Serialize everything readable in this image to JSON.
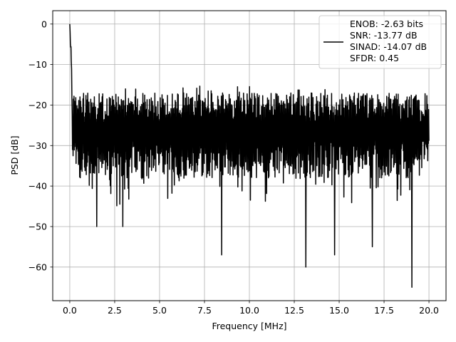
{
  "chart_data": {
    "type": "line",
    "title": "",
    "xlabel": "Frequency [MHz]",
    "ylabel": "PSD [dB]",
    "xlim": [
      -0.95,
      20.95
    ],
    "ylim": [
      -68.3,
      3.3
    ],
    "xticks": [
      0,
      2.5,
      5,
      7.5,
      10,
      12.5,
      15,
      17.5,
      20
    ],
    "xtick_labels": [
      "0.0",
      "2.5",
      "5.0",
      "7.5",
      "10.0",
      "12.5",
      "15.0",
      "17.5",
      "20.0"
    ],
    "yticks": [
      0,
      -10,
      -20,
      -30,
      -40,
      -50,
      -60
    ],
    "ytick_labels": [
      "0",
      "−10",
      "−20",
      "−30",
      "−40",
      "−50",
      "−60"
    ],
    "grid": true,
    "line_color": "#000000",
    "noise_profile": {
      "x_start": 0,
      "x_end": 20,
      "n_points": 1200,
      "peak_at_x": 0,
      "peak_value": 0,
      "initial_decay_to": -15,
      "upper_envelope_db": -17,
      "lower_envelope_db": -38,
      "median_db": -27
    },
    "notable_dips": [
      {
        "x": 1.5,
        "y": -50
      },
      {
        "x": 2.95,
        "y": -50
      },
      {
        "x": 8.45,
        "y": -57
      },
      {
        "x": 13.15,
        "y": -60
      },
      {
        "x": 14.75,
        "y": -57
      },
      {
        "x": 16.85,
        "y": -55
      },
      {
        "x": 19.05,
        "y": -65
      }
    ],
    "legend": {
      "position": "top-right",
      "entries": [
        "ENOB: -2.63 bits",
        "SNR: -13.77 dB",
        "SINAD: -14.07 dB",
        "SFDR: 0.45"
      ]
    }
  }
}
